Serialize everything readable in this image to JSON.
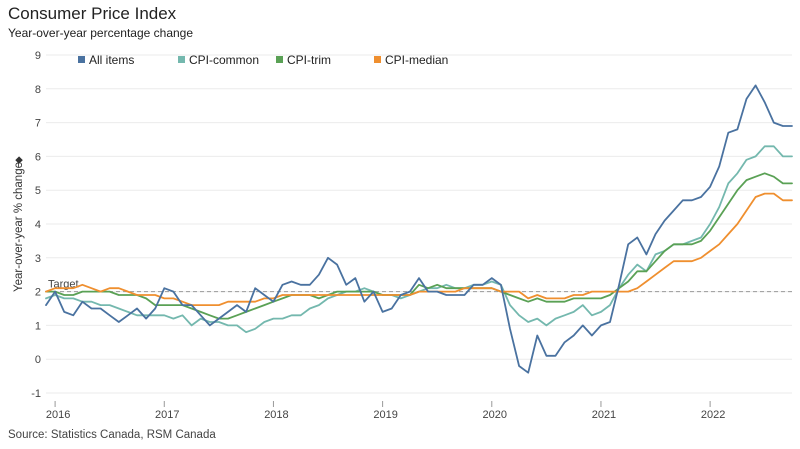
{
  "title": "Consumer Price Index",
  "subtitle": "Year-over-year percentage change",
  "source": "Source: Statistics Canada, RSM Canada",
  "chart_data": {
    "type": "line",
    "ylabel": "Year-over-year % change",
    "ylim": [
      -1,
      9
    ],
    "yticks": [
      -1,
      0,
      1,
      2,
      3,
      4,
      5,
      6,
      7,
      8,
      9
    ],
    "x_start": "2015-12",
    "x_end": "2022-10",
    "x_tick_labels": [
      "2016",
      "2017",
      "2018",
      "2019",
      "2020",
      "2021",
      "2022"
    ],
    "grid": "horizontal",
    "legend_position": "top-left",
    "target": {
      "label": "Target",
      "value": 2
    },
    "dates": [
      "2015-12",
      "2016-01",
      "2016-02",
      "2016-03",
      "2016-04",
      "2016-05",
      "2016-06",
      "2016-07",
      "2016-08",
      "2016-09",
      "2016-10",
      "2016-11",
      "2016-12",
      "2017-01",
      "2017-02",
      "2017-03",
      "2017-04",
      "2017-05",
      "2017-06",
      "2017-07",
      "2017-08",
      "2017-09",
      "2017-10",
      "2017-11",
      "2017-12",
      "2018-01",
      "2018-02",
      "2018-03",
      "2018-04",
      "2018-05",
      "2018-06",
      "2018-07",
      "2018-08",
      "2018-09",
      "2018-10",
      "2018-11",
      "2018-12",
      "2019-01",
      "2019-02",
      "2019-03",
      "2019-04",
      "2019-05",
      "2019-06",
      "2019-07",
      "2019-08",
      "2019-09",
      "2019-10",
      "2019-11",
      "2019-12",
      "2020-01",
      "2020-02",
      "2020-03",
      "2020-04",
      "2020-05",
      "2020-06",
      "2020-07",
      "2020-08",
      "2020-09",
      "2020-10",
      "2020-11",
      "2020-12",
      "2021-01",
      "2021-02",
      "2021-03",
      "2021-04",
      "2021-05",
      "2021-06",
      "2021-07",
      "2021-08",
      "2021-09",
      "2021-10",
      "2021-11",
      "2021-12",
      "2022-01",
      "2022-02",
      "2022-03",
      "2022-04",
      "2022-05",
      "2022-06",
      "2022-07",
      "2022-08",
      "2022-09",
      "2022-10"
    ],
    "series": [
      {
        "name": "All items",
        "color": "#4a72a0",
        "values": [
          1.6,
          2.0,
          1.4,
          1.3,
          1.7,
          1.5,
          1.5,
          1.3,
          1.1,
          1.3,
          1.5,
          1.2,
          1.5,
          2.1,
          2.0,
          1.6,
          1.6,
          1.3,
          1.0,
          1.2,
          1.4,
          1.6,
          1.4,
          2.1,
          1.9,
          1.7,
          2.2,
          2.3,
          2.2,
          2.2,
          2.5,
          3.0,
          2.8,
          2.2,
          2.4,
          1.7,
          2.0,
          1.4,
          1.5,
          1.9,
          2.0,
          2.4,
          2.0,
          2.0,
          1.9,
          1.9,
          1.9,
          2.2,
          2.2,
          2.4,
          2.2,
          0.9,
          -0.2,
          -0.4,
          0.7,
          0.1,
          0.1,
          0.5,
          0.7,
          1.0,
          0.7,
          1.0,
          1.1,
          2.2,
          3.4,
          3.6,
          3.1,
          3.7,
          4.1,
          4.4,
          4.7,
          4.7,
          4.8,
          5.1,
          5.7,
          6.7,
          6.8,
          7.7,
          8.1,
          7.6,
          7.0,
          6.9,
          6.9
        ]
      },
      {
        "name": "CPI-common",
        "color": "#74b8ae",
        "values": [
          1.8,
          1.9,
          1.8,
          1.8,
          1.7,
          1.7,
          1.6,
          1.6,
          1.5,
          1.4,
          1.3,
          1.3,
          1.3,
          1.3,
          1.2,
          1.3,
          1.0,
          1.2,
          1.1,
          1.1,
          1.0,
          1.0,
          0.8,
          0.9,
          1.1,
          1.2,
          1.2,
          1.3,
          1.3,
          1.5,
          1.6,
          1.8,
          1.9,
          2.0,
          2.0,
          2.1,
          2.0,
          1.9,
          1.9,
          1.8,
          1.9,
          2.0,
          2.1,
          2.1,
          2.2,
          2.1,
          2.1,
          2.2,
          2.2,
          2.3,
          2.2,
          1.6,
          1.3,
          1.1,
          1.2,
          1.0,
          1.2,
          1.3,
          1.4,
          1.6,
          1.3,
          1.4,
          1.6,
          2.1,
          2.5,
          2.8,
          2.6,
          3.1,
          3.2,
          3.4,
          3.4,
          3.5,
          3.6,
          4.0,
          4.5,
          5.2,
          5.5,
          5.9,
          6.0,
          6.3,
          6.3,
          6.0,
          6.0
        ]
      },
      {
        "name": "CPI-trim",
        "color": "#5aa155",
        "values": [
          2.0,
          2.0,
          1.9,
          1.9,
          2.0,
          2.0,
          2.0,
          2.0,
          1.9,
          1.9,
          1.9,
          1.8,
          1.6,
          1.6,
          1.6,
          1.6,
          1.5,
          1.4,
          1.3,
          1.2,
          1.2,
          1.3,
          1.4,
          1.5,
          1.6,
          1.7,
          1.8,
          1.9,
          1.9,
          1.9,
          1.8,
          1.9,
          2.0,
          2.0,
          2.0,
          2.0,
          2.0,
          1.9,
          1.9,
          1.9,
          1.9,
          2.2,
          2.1,
          2.2,
          2.1,
          2.1,
          2.1,
          2.1,
          2.1,
          2.1,
          2.0,
          1.9,
          1.8,
          1.7,
          1.8,
          1.7,
          1.7,
          1.7,
          1.8,
          1.8,
          1.8,
          1.8,
          1.9,
          2.1,
          2.3,
          2.6,
          2.6,
          2.9,
          3.2,
          3.4,
          3.4,
          3.4,
          3.5,
          3.8,
          4.2,
          4.6,
          5.0,
          5.3,
          5.4,
          5.5,
          5.4,
          5.2,
          5.2
        ]
      },
      {
        "name": "CPI-median",
        "color": "#ef8f2f",
        "values": [
          2.0,
          2.1,
          2.1,
          2.1,
          2.2,
          2.1,
          2.0,
          2.1,
          2.1,
          2.0,
          1.9,
          1.9,
          1.9,
          1.8,
          1.8,
          1.7,
          1.6,
          1.6,
          1.6,
          1.6,
          1.7,
          1.7,
          1.7,
          1.7,
          1.8,
          1.8,
          1.9,
          1.9,
          1.9,
          1.9,
          1.9,
          1.9,
          1.9,
          1.9,
          1.9,
          1.9,
          1.9,
          1.9,
          1.9,
          1.9,
          1.9,
          2.0,
          2.0,
          2.0,
          2.0,
          2.0,
          2.1,
          2.1,
          2.1,
          2.1,
          2.0,
          2.0,
          2.0,
          1.8,
          1.9,
          1.8,
          1.8,
          1.8,
          1.9,
          1.9,
          2.0,
          2.0,
          2.0,
          2.0,
          2.0,
          2.1,
          2.3,
          2.5,
          2.7,
          2.9,
          2.9,
          2.9,
          3.0,
          3.2,
          3.4,
          3.7,
          4.0,
          4.4,
          4.8,
          4.9,
          4.9,
          4.7,
          4.7
        ]
      }
    ]
  }
}
